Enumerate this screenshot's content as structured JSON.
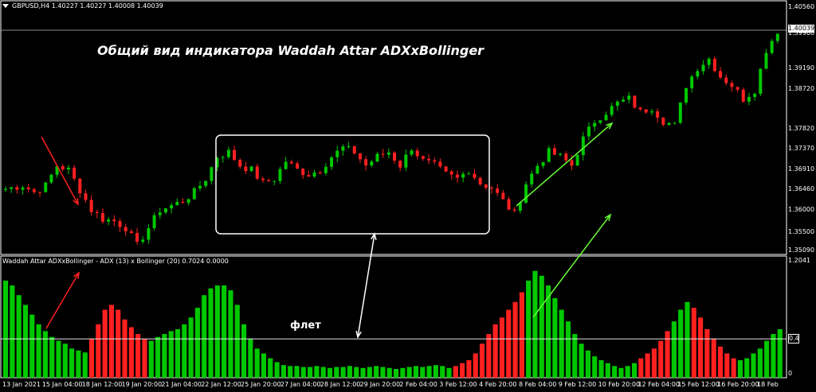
{
  "main_chart": {
    "header": "GBPUSD,H4  1.40227 1.40227 1.40008 1.40039",
    "menu_icon": "triangle-down-icon",
    "current_price": "1.40039",
    "annotation_title": "Общий вид индикатора Waddah Attar ADXxBollinger",
    "y_ticks": [
      "1.40560",
      "1.39960",
      "1.39190",
      "1.38720",
      "1.37820",
      "1.37370",
      "1.36910",
      "1.36460",
      "1.36000",
      "1.35500",
      "1.35090"
    ]
  },
  "indicator": {
    "header": "Waddah Attar ADXxBollinger - ADX (13) x Bollinger (20) 0.7024 0.0000",
    "y_ticks": [
      "1.2041",
      "0.4",
      "0"
    ],
    "level_label": "0.4",
    "flat_label": "флет"
  },
  "x_axis": [
    "13 Jan 2021",
    "15 Jan 04:00",
    "18 Jan 12:00",
    "19 Jan 20:00",
    "21 Jan 04:00",
    "22 Jan 12:00",
    "25 Jan 20:00",
    "27 Jan 04:00",
    "28 Jan 12:00",
    "29 Jan 20:00",
    "2 Feb 04:00",
    "3 Feb 12:00",
    "4 Feb 20:00",
    "8 Feb 04:00",
    "9 Feb 12:00",
    "10 Feb 20:00",
    "12 Feb 04:00",
    "15 Feb 12:00",
    "16 Feb 20:00",
    "18 Feb"
  ],
  "colors": {
    "bull": "#00c800",
    "bear": "#ff2020",
    "background": "#000000",
    "axis": "#ffffff",
    "flat_box": "#ffffff",
    "arrow_up": "#66ff33",
    "arrow_down": "#ff2020",
    "flat_arrow": "#ffffff"
  },
  "chart_data": [
    {
      "type": "candlestick",
      "symbol": "GBPUSD",
      "timeframe": "H4",
      "ohlc_last": {
        "open": 1.40227,
        "high": 1.40227,
        "low": 1.40008,
        "close": 1.40039
      },
      "y_ticks": [
        1.4056,
        1.3996,
        1.3919,
        1.3872,
        1.3782,
        1.3737,
        1.3691,
        1.3646,
        1.36,
        1.355,
        1.3509
      ],
      "ylim": [
        1.35,
        1.407
      ],
      "close_path": [
        1.3645,
        1.365,
        1.3655,
        1.364,
        1.3655,
        1.37,
        1.369,
        1.3645,
        1.36,
        1.358,
        1.3575,
        1.356,
        1.352,
        1.356,
        1.36,
        1.361,
        1.362,
        1.364,
        1.367,
        1.372,
        1.373,
        1.37,
        1.369,
        1.366,
        1.367,
        1.371,
        1.369,
        1.368,
        1.369,
        1.372,
        1.374,
        1.373,
        1.37,
        1.372,
        1.373,
        1.37,
        1.374,
        1.371,
        1.37,
        1.368,
        1.367,
        1.369,
        1.366,
        1.365,
        1.362,
        1.359,
        1.366,
        1.37,
        1.373,
        1.372,
        1.37,
        1.376,
        1.38,
        1.382,
        1.384,
        1.385,
        1.382,
        1.383,
        1.38,
        1.379,
        1.388,
        1.392,
        1.394,
        1.39,
        1.388,
        1.385,
        1.387,
        1.396,
        1.4003
      ],
      "highlight_range": {
        "x": [
          25,
          58
        ],
        "y": [
          1.3555,
          1.3775
        ],
        "label": "flat"
      }
    },
    {
      "type": "bar",
      "name": "Waddah Attar ADXxBollinger",
      "params": "ADX (13) x Bollinger (20)",
      "values_printed": [
        0.7024,
        0.0
      ],
      "y_ticks": [
        1.2041,
        0.4,
        0
      ],
      "ylim": [
        0,
        1.2041
      ],
      "level": 0.4,
      "series": [
        {
          "name": "bull",
          "values": [
            1.0,
            0.95,
            0.85,
            0.75,
            0.65,
            0.55,
            0.48,
            0.42,
            0.38,
            0.35,
            0.3,
            0.28,
            0.26,
            0.4,
            0.55,
            0.7,
            0.75,
            0.7,
            0.6,
            0.52,
            0.45,
            0.4,
            0.38,
            0.42,
            0.45,
            0.48,
            0.5,
            0.55,
            0.62,
            0.72,
            0.85,
            0.92,
            0.95,
            0.95,
            0.9,
            0.75,
            0.55,
            0.4,
            0.3,
            0.25,
            0.2,
            0.16,
            0.13,
            0.12,
            0.12,
            0.11,
            0.11,
            0.12,
            0.11,
            0.1,
            0.11,
            0.11,
            0.12,
            0.11,
            0.1,
            0.11,
            0.12,
            0.11,
            0.1,
            0.09,
            0.1,
            0.11,
            0.12,
            0.11,
            0.12,
            0.13,
            0.12,
            0.1,
            0.12,
            0.15,
            0.18,
            0.25,
            0.35,
            0.45,
            0.55,
            0.62,
            0.7,
            0.78,
            0.88,
            1.0,
            1.1,
            1.05,
            0.95,
            0.82,
            0.7,
            0.58,
            0.45,
            0.35,
            0.28,
            0.22,
            0.18,
            0.15,
            0.12,
            0.1,
            0.12,
            0.15,
            0.2,
            0.25,
            0.3,
            0.38,
            0.48,
            0.58,
            0.7,
            0.78,
            0.72,
            0.62,
            0.5,
            0.4,
            0.32,
            0.25,
            0.2,
            0.18,
            0.2,
            0.25,
            0.3,
            0.38,
            0.45,
            0.5
          ]
        },
        {
          "name": "bear",
          "values": []
        }
      ]
    }
  ]
}
